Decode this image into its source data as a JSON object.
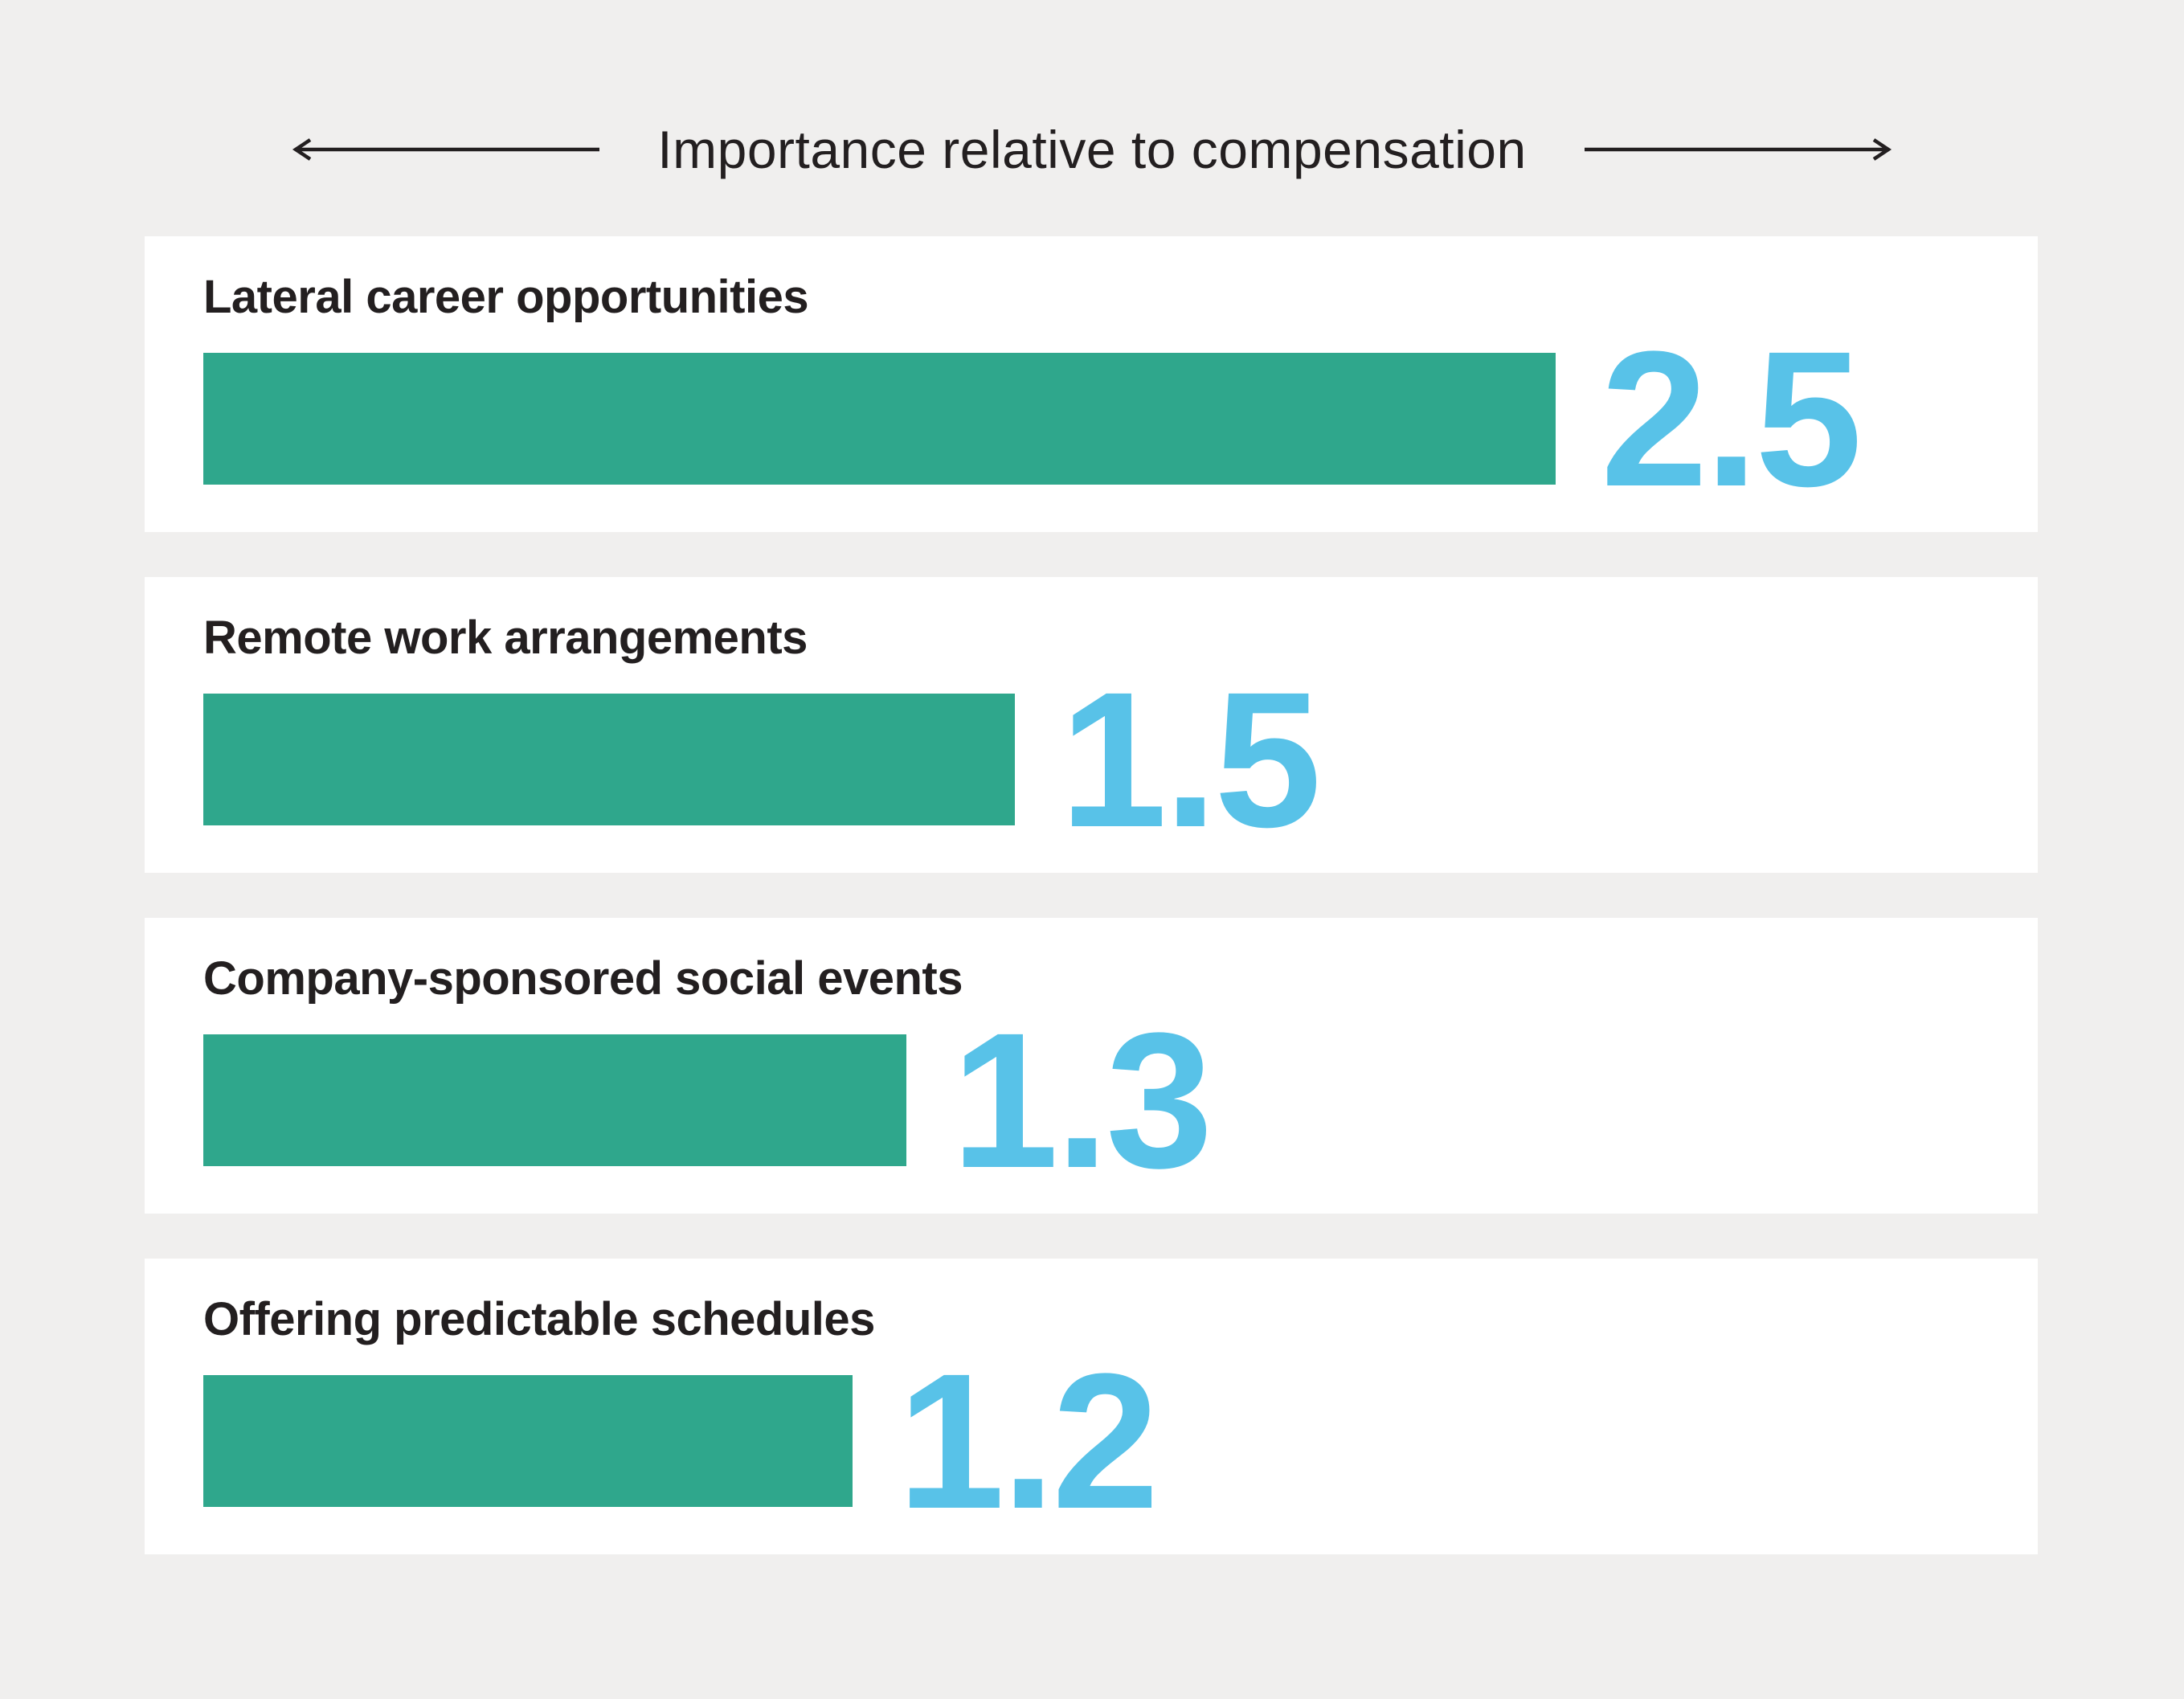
{
  "header": {
    "title": "Importance relative to compensation"
  },
  "chart_data": {
    "type": "bar",
    "orientation": "horizontal",
    "title": "Importance relative to compensation",
    "categories": [
      "Lateral career opportunities",
      "Remote work arrangements",
      "Company-sponsored social events",
      "Offering predictable schedules"
    ],
    "values": [
      2.5,
      1.5,
      1.3,
      1.2
    ],
    "xlim": [
      0,
      3.3
    ],
    "axis_visible": false,
    "gridlines": false,
    "legend": "none",
    "value_label_position": "right-of-bar",
    "row_style": "white-card-per-bar"
  },
  "colors": {
    "background": "#F0EFEE",
    "card": "#FFFFFF",
    "bar": "#2FA78C",
    "value": "#58C2E8",
    "text": "#231F20",
    "arrow": "#231F20"
  }
}
